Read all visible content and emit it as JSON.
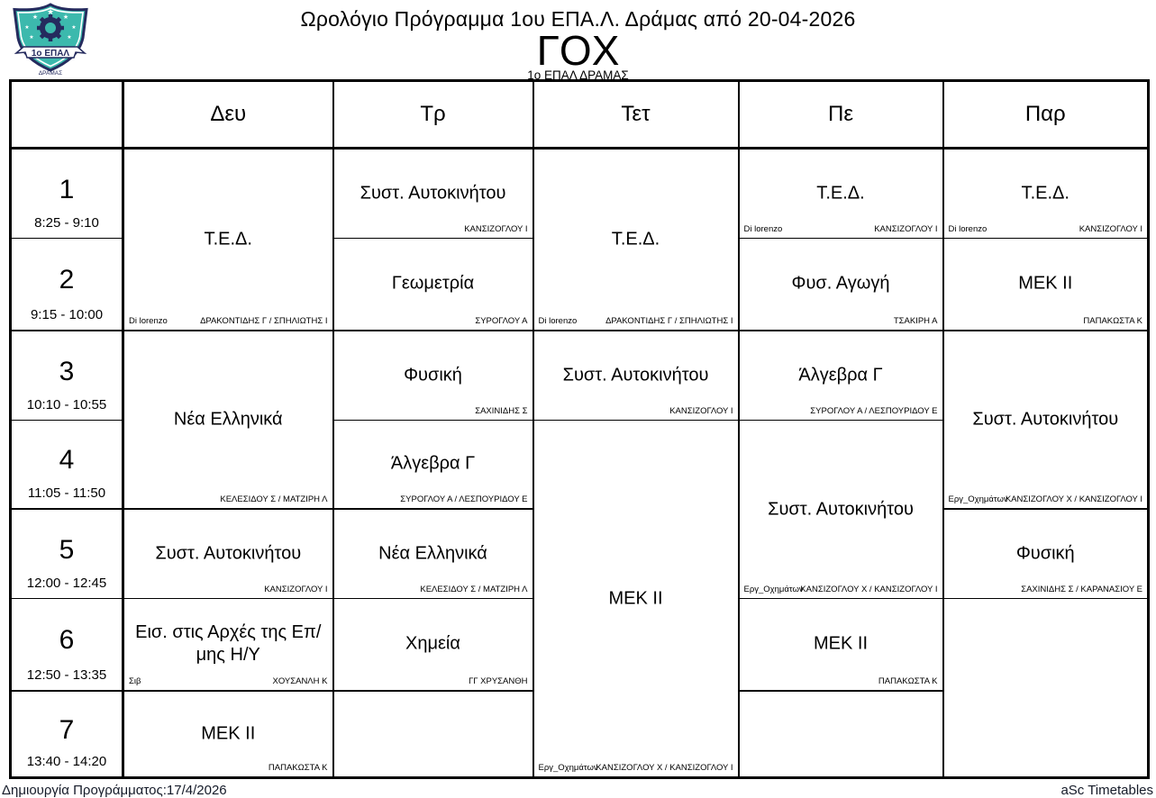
{
  "page": {
    "title": "Ωρολόγιο Πρόγραμμα 1ου ΕΠΑ.Λ. Δράμας από 20-04-2026",
    "class_name": "ΓΟΧ",
    "school_name": "1ο ΕΠΑΛ ΔΡΑΜΑΣ"
  },
  "logo": {
    "banner": "1ο ΕΠΑΛ",
    "subtitle": "ΔΡΑΜΑΣ"
  },
  "days": [
    "Δευ",
    "Τρ",
    "Τετ",
    "Πε",
    "Παρ"
  ],
  "periods": [
    {
      "num": "1",
      "time": "8:25 - 9:10"
    },
    {
      "num": "2",
      "time": "9:15 - 10:00"
    },
    {
      "num": "3",
      "time": "10:10 - 10:55"
    },
    {
      "num": "4",
      "time": "11:05 - 11:50"
    },
    {
      "num": "5",
      "time": "12:00 - 12:45"
    },
    {
      "num": "6",
      "time": "12:50 - 13:35"
    },
    {
      "num": "7",
      "time": "13:40 - 14:20"
    }
  ],
  "lessons": [
    {
      "day": 0,
      "row": 0,
      "rowspan": 2,
      "subject": "Τ.Ε.Δ.",
      "room": "Di lorenzo",
      "teachers": "ΔΡΑΚΟΝΤΙΔΗΣ Γ / ΣΠΗΛΙΩΤΗΣ Ι"
    },
    {
      "day": 0,
      "row": 2,
      "rowspan": 2,
      "subject": "Νέα Ελληνικά",
      "room": "",
      "teachers": "ΚΕΛΕΣΙΔΟΥ Σ / ΜΑΤΖΙΡΗ Λ"
    },
    {
      "day": 0,
      "row": 4,
      "rowspan": 1,
      "subject": "Συστ. Αυτοκινήτου",
      "room": "",
      "teachers": "ΚΑΝΣΙΖΟΓΛΟΥ Ι"
    },
    {
      "day": 0,
      "row": 5,
      "rowspan": 1,
      "subject": "Εισ. στις Αρχές της Επ/μης Η/Υ",
      "room": "Σιβ",
      "teachers": "ΧΟΥΣΑΝΛΗ Κ"
    },
    {
      "day": 0,
      "row": 6,
      "rowspan": 1,
      "subject": "ΜΕΚ ΙΙ",
      "room": "",
      "teachers": "ΠΑΠΑΚΩΣΤΑ Κ"
    },
    {
      "day": 1,
      "row": 0,
      "rowspan": 1,
      "subject": "Συστ. Αυτοκινήτου",
      "room": "",
      "teachers": "ΚΑΝΣΙΖΟΓΛΟΥ Ι"
    },
    {
      "day": 1,
      "row": 1,
      "rowspan": 1,
      "subject": "Γεωμετρία",
      "room": "",
      "teachers": "ΣΥΡΟΓΛΟΥ Α"
    },
    {
      "day": 1,
      "row": 2,
      "rowspan": 1,
      "subject": "Φυσική",
      "room": "",
      "teachers": "ΣΑΧΙΝΙΔΗΣ Σ"
    },
    {
      "day": 1,
      "row": 3,
      "rowspan": 1,
      "subject": "Άλγεβρα Γ",
      "room": "",
      "teachers": "ΣΥΡΟΓΛΟΥ Α / ΛΕΣΠΟΥΡΙΔΟΥ Ε"
    },
    {
      "day": 1,
      "row": 4,
      "rowspan": 1,
      "subject": "Νέα Ελληνικά",
      "room": "",
      "teachers": "ΚΕΛΕΣΙΔΟΥ Σ / ΜΑΤΖΙΡΗ Λ"
    },
    {
      "day": 1,
      "row": 5,
      "rowspan": 1,
      "subject": "Χημεία",
      "room": "",
      "teachers": "ΓΓ ΧΡΥΣΑΝΘΗ"
    },
    {
      "day": 2,
      "row": 0,
      "rowspan": 2,
      "subject": "Τ.Ε.Δ.",
      "room": "Di lorenzo",
      "teachers": "ΔΡΑΚΟΝΤΙΔΗΣ Γ / ΣΠΗΛΙΩΤΗΣ Ι"
    },
    {
      "day": 2,
      "row": 2,
      "rowspan": 1,
      "subject": "Συστ. Αυτοκινήτου",
      "room": "",
      "teachers": "ΚΑΝΣΙΖΟΓΛΟΥ Ι"
    },
    {
      "day": 2,
      "row": 3,
      "rowspan": 4,
      "subject": "ΜΕΚ ΙΙ",
      "room": "Εργ_Οχημάτων",
      "teachers": "ΚΑΝΣΙΖΟΓΛΟΥ Χ / ΚΑΝΣΙΖΟΓΛΟΥ Ι"
    },
    {
      "day": 3,
      "row": 0,
      "rowspan": 1,
      "subject": "Τ.Ε.Δ.",
      "room": "Di lorenzo",
      "teachers": "ΚΑΝΣΙΖΟΓΛΟΥ Ι"
    },
    {
      "day": 3,
      "row": 1,
      "rowspan": 1,
      "subject": "Φυσ. Αγωγή",
      "room": "",
      "teachers": "ΤΣΑΚΙΡΗ Α"
    },
    {
      "day": 3,
      "row": 2,
      "rowspan": 1,
      "subject": "Άλγεβρα Γ",
      "room": "",
      "teachers": "ΣΥΡΟΓΛΟΥ Α / ΛΕΣΠΟΥΡΙΔΟΥ Ε"
    },
    {
      "day": 3,
      "row": 3,
      "rowspan": 2,
      "subject": "Συστ. Αυτοκινήτου",
      "room": "Εργ_Οχημάτων",
      "teachers": "ΚΑΝΣΙΖΟΓΛΟΥ Χ / ΚΑΝΣΙΖΟΓΛΟΥ Ι"
    },
    {
      "day": 3,
      "row": 5,
      "rowspan": 1,
      "subject": "ΜΕΚ ΙΙ",
      "room": "",
      "teachers": "ΠΑΠΑΚΩΣΤΑ Κ"
    },
    {
      "day": 4,
      "row": 0,
      "rowspan": 1,
      "subject": "Τ.Ε.Δ.",
      "room": "Di lorenzo",
      "teachers": "ΚΑΝΣΙΖΟΓΛΟΥ Ι"
    },
    {
      "day": 4,
      "row": 1,
      "rowspan": 1,
      "subject": "ΜΕΚ ΙΙ",
      "room": "",
      "teachers": "ΠΑΠΑΚΩΣΤΑ Κ"
    },
    {
      "day": 4,
      "row": 2,
      "rowspan": 2,
      "subject": "Συστ. Αυτοκινήτου",
      "room": "Εργ_Οχημάτων",
      "teachers": "ΚΑΝΣΙΖΟΓΛΟΥ Χ / ΚΑΝΣΙΖΟΓΛΟΥ Ι"
    },
    {
      "day": 4,
      "row": 4,
      "rowspan": 1,
      "subject": "Φυσική",
      "room": "",
      "teachers": "ΣΑΧΙΝΙΔΗΣ Σ / ΚΑΡΑΝΑΣΙΟΥ Ε"
    },
    {
      "day": 4,
      "row": 5,
      "rowspan": 2,
      "subject": "",
      "room": "",
      "teachers": ""
    }
  ],
  "footer": {
    "created": "Δημιουργία Προγράμματος:17/4/2026",
    "credit": "aSc Timetables"
  },
  "colors": {
    "logo_teal": "#3cb9ad",
    "logo_navy": "#252b5e"
  }
}
